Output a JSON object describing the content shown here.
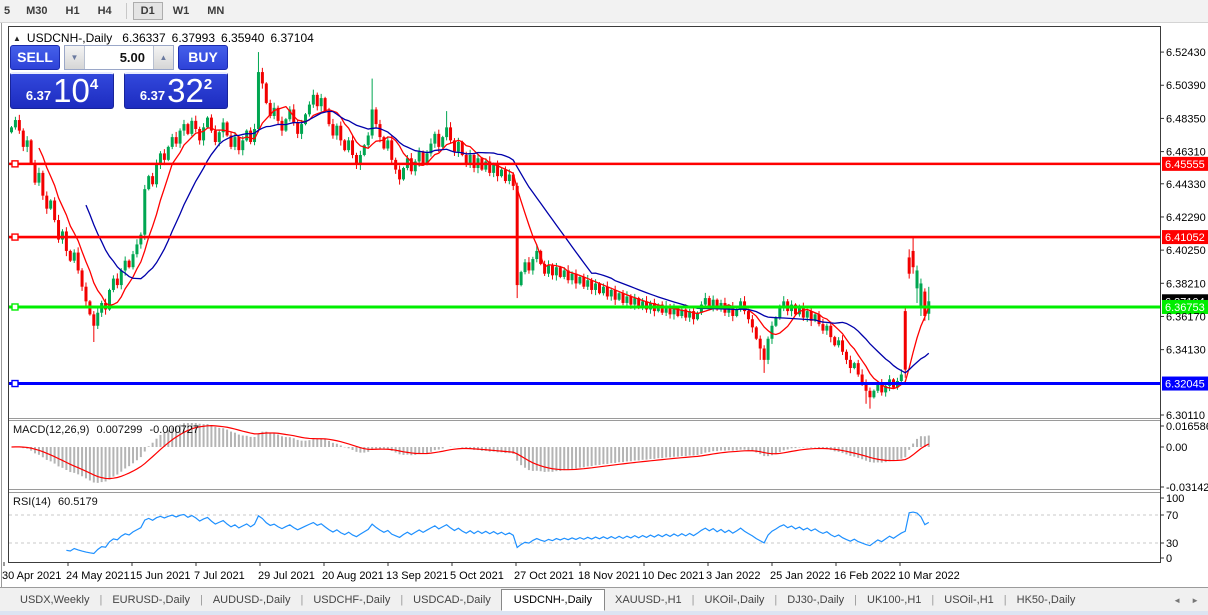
{
  "toolbar": {
    "timeframes": [
      "5",
      "M30",
      "H1",
      "H4",
      "D1",
      "W1",
      "MN"
    ],
    "active_timeframe": "D1"
  },
  "chart": {
    "collapse_icon": "▲",
    "symbol_title": "USDCNH-,Daily",
    "ohlc": {
      "open": "6.36337",
      "high": "6.37993",
      "low": "6.35940",
      "close": "6.37104"
    }
  },
  "trade_panel": {
    "sell_label": "SELL",
    "buy_label": "BUY",
    "volume": "5.00",
    "spin_down_icon": "▼",
    "spin_up_icon": "▲",
    "sell_price_prefix": "6.37",
    "sell_price_big": "10",
    "sell_price_sup": "4",
    "buy_price_prefix": "6.37",
    "buy_price_big": "32",
    "buy_price_sup": "2"
  },
  "indicators": {
    "macd": {
      "label": "MACD(12,26,9)",
      "value": "0.007299",
      "signal_value": "-0.000727",
      "axis_ticks": [
        "0.016586",
        "0.00",
        "-0.03142"
      ],
      "histogram_color": "#b4b4b4",
      "signal_color": "#ff0000"
    },
    "rsi": {
      "label": "RSI(14)",
      "value": "60.5179",
      "axis_ticks": [
        "100",
        "70",
        "30",
        "0"
      ],
      "levels": [
        70,
        30
      ],
      "line_color": "#1e90ff"
    }
  },
  "axes": {
    "y_ticks": [
      "6.52430",
      "6.50390",
      "6.48350",
      "6.46310",
      "6.44330",
      "6.42290",
      "6.40250",
      "6.38210",
      "6.36170",
      "6.34130",
      "6.30110"
    ],
    "dates": [
      "30 Apr 2021",
      "24 May 2021",
      "15 Jun 2021",
      "7 Jul 2021",
      "29 Jul 2021",
      "20 Aug 2021",
      "13 Sep 2021",
      "5 Oct 2021",
      "27 Oct 2021",
      "18 Nov 2021",
      "10 Dec 2021",
      "3 Jan 2022",
      "25 Jan 2022",
      "16 Feb 2022",
      "10 Mar 2022"
    ]
  },
  "hlines": [
    {
      "label": "6.45555",
      "price": 6.45555,
      "color": "#ff0000",
      "type": "hline"
    },
    {
      "label": "6.41052",
      "price": 6.41052,
      "color": "#ff0000",
      "type": "hline"
    },
    {
      "label": "6.37104",
      "price": 6.37104,
      "color": "#000000",
      "type": "price_marker"
    },
    {
      "label": "6.36753",
      "price": 6.36753,
      "color": "#00ee00",
      "type": "hline"
    },
    {
      "label": "6.32045",
      "price": 6.32045,
      "color": "#0000ff",
      "type": "hline"
    }
  ],
  "tabs": {
    "separator": "|",
    "items": [
      "USDX,Weekly",
      "EURUSD-,Daily",
      "AUDUSD-,Daily",
      "USDCHF-,Daily",
      "USDCAD-,Daily",
      "USDCNH-,Daily",
      "XAUUSD-,H1",
      "UKOil-,Daily",
      "DJ30-,Daily",
      "UK100-,H1",
      "USOil-,H1",
      "HK50-,Daily"
    ],
    "active": "USDCNH-,Daily",
    "nav_prev": "◄",
    "nav_next": "►"
  },
  "chart_data": {
    "type": "candlestick",
    "symbol": "USDCNH-",
    "timeframe": "Daily",
    "up_color": "#00a651",
    "down_color": "#f20000",
    "ma_fast_color": "#ff0000",
    "ma_slow_color": "#0000aa",
    "ma_fast_period": 8,
    "ma_slow_period": 20,
    "closes": [
      6.478,
      6.4825,
      6.476,
      6.466,
      6.47,
      6.456,
      6.444,
      6.45,
      6.436,
      6.428,
      6.433,
      6.421,
      6.409,
      6.414,
      6.402,
      6.396,
      6.401,
      6.39,
      6.38,
      6.371,
      6.363,
      6.356,
      6.364,
      6.37,
      6.366,
      6.378,
      6.385,
      6.381,
      6.39,
      6.396,
      6.392,
      6.4,
      6.406,
      6.412,
      6.44,
      6.448,
      6.443,
      6.455,
      6.462,
      6.458,
      6.466,
      6.472,
      6.468,
      6.476,
      6.48,
      6.474,
      6.482,
      6.477,
      6.47,
      6.478,
      6.484,
      6.476,
      6.469,
      6.475,
      6.481,
      6.473,
      6.466,
      6.472,
      6.464,
      6.47,
      6.476,
      6.469,
      6.477,
      6.512,
      6.505,
      6.493,
      6.485,
      6.49,
      6.482,
      6.476,
      6.483,
      6.489,
      6.481,
      6.474,
      6.48,
      6.486,
      6.492,
      6.498,
      6.491,
      6.496,
      6.488,
      6.48,
      6.473,
      6.479,
      6.47,
      6.464,
      6.47,
      6.461,
      6.455,
      6.461,
      6.467,
      6.473,
      6.489,
      6.48,
      6.472,
      6.465,
      6.47,
      6.458,
      6.452,
      6.446,
      6.453,
      6.459,
      6.451,
      6.457,
      6.463,
      6.456,
      6.462,
      6.468,
      6.474,
      6.466,
      6.472,
      6.478,
      6.47,
      6.463,
      6.469,
      6.461,
      6.455,
      6.461,
      6.453,
      6.459,
      6.452,
      6.457,
      6.45,
      6.455,
      6.448,
      6.452,
      6.445,
      6.449,
      6.442,
      6.381,
      6.389,
      6.395,
      6.39,
      6.397,
      6.402,
      6.394,
      6.388,
      6.393,
      6.387,
      6.392,
      6.386,
      6.39,
      6.384,
      6.388,
      6.382,
      6.386,
      6.38,
      6.384,
      6.378,
      6.382,
      6.376,
      6.38,
      6.374,
      6.378,
      6.372,
      6.376,
      6.37,
      6.374,
      6.369,
      6.373,
      6.367,
      6.371,
      6.366,
      6.37,
      6.365,
      6.369,
      6.364,
      6.368,
      6.363,
      6.367,
      6.362,
      6.366,
      6.361,
      6.365,
      6.36,
      6.364,
      6.369,
      6.373,
      6.368,
      6.372,
      6.366,
      6.37,
      6.364,
      6.368,
      6.362,
      6.366,
      6.371,
      6.365,
      6.36,
      6.355,
      6.348,
      6.342,
      6.335,
      6.348,
      6.356,
      6.361,
      6.367,
      6.371,
      6.365,
      6.369,
      6.363,
      6.367,
      6.361,
      6.365,
      6.359,
      6.363,
      6.357,
      6.353,
      6.356,
      6.349,
      6.344,
      6.347,
      6.34,
      6.335,
      6.33,
      6.333,
      6.326,
      6.321,
      6.316,
      6.312,
      6.316,
      6.32,
      6.315,
      6.319,
      6.323,
      6.318,
      6.322,
      6.326,
      6.329,
      6.388,
      6.392,
      6.39,
      6.382,
      6.362,
      6.37104
    ],
    "ohlc_overrides": {
      "21": [
        6.363,
        6.365,
        6.346,
        6.356
      ],
      "63": [
        6.477,
        6.5243,
        6.475,
        6.512
      ],
      "92": [
        6.473,
        6.508,
        6.471,
        6.489
      ],
      "111": [
        6.472,
        6.488,
        6.47,
        6.478
      ],
      "129": [
        6.442,
        6.444,
        6.373,
        6.381
      ],
      "134": [
        6.397,
        6.406,
        6.395,
        6.402
      ],
      "191": [
        6.348,
        6.35,
        6.335,
        6.342
      ],
      "192": [
        6.342,
        6.344,
        6.327,
        6.335
      ],
      "218": [
        6.321,
        6.323,
        6.308,
        6.316
      ],
      "219": [
        6.316,
        6.318,
        6.305,
        6.312
      ],
      "228": [
        6.365,
        6.367,
        6.324,
        6.329
      ],
      "229": [
        6.398,
        6.403,
        6.385,
        6.388
      ],
      "230": [
        6.402,
        6.4105,
        6.388,
        6.392
      ],
      "231": [
        6.379,
        6.393,
        6.37,
        6.39
      ],
      "232": [
        6.368,
        6.385,
        6.362,
        6.382
      ],
      "233": [
        6.377,
        6.379,
        6.359,
        6.362
      ],
      "234": [
        6.36337,
        6.37993,
        6.3594,
        6.37104
      ]
    }
  }
}
